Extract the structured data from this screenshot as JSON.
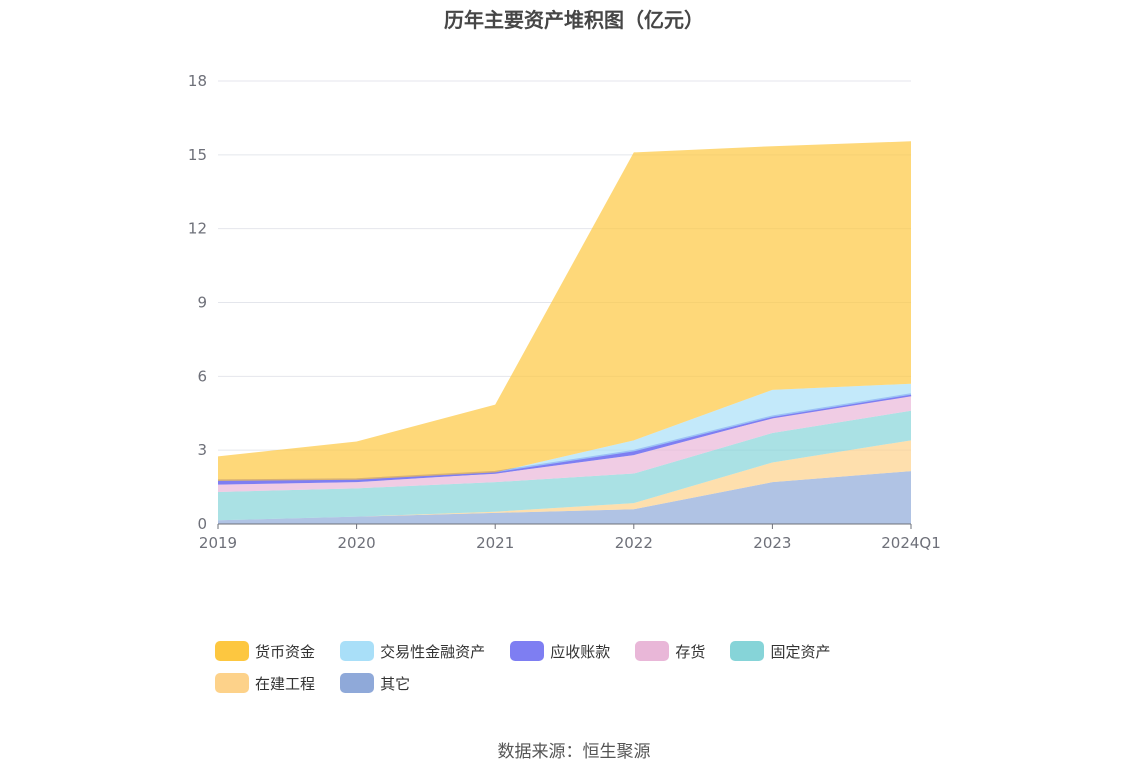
{
  "chart_data": {
    "type": "area",
    "title": "历年主要资产堆积图（亿元）",
    "categories": [
      "2019",
      "2020",
      "2021",
      "2022",
      "2023",
      "2024Q1"
    ],
    "ylim": [
      0,
      18
    ],
    "yticks": [
      0,
      3,
      6,
      9,
      12,
      15,
      18
    ],
    "grid": true,
    "legend_position": "bottom",
    "stacked": true,
    "series": [
      {
        "name": "其它",
        "color": "#8fa9d9",
        "values": [
          0.15,
          0.3,
          0.45,
          0.6,
          1.7,
          2.15
        ]
      },
      {
        "name": "在建工程",
        "color": "#fdd28a",
        "values": [
          0.0,
          0.0,
          0.05,
          0.25,
          0.8,
          1.25
        ]
      },
      {
        "name": "固定资产",
        "color": "#86d4d8",
        "values": [
          1.15,
          1.15,
          1.2,
          1.2,
          1.2,
          1.2
        ]
      },
      {
        "name": "存货",
        "color": "#e9b7d8",
        "values": [
          0.3,
          0.25,
          0.35,
          0.75,
          0.6,
          0.6
        ]
      },
      {
        "name": "应收账款",
        "color": "#7e7ef2",
        "values": [
          0.15,
          0.1,
          0.05,
          0.15,
          0.05,
          0.05
        ]
      },
      {
        "name": "交易性金融资产",
        "color": "#a9dff8",
        "values": [
          0.0,
          0.0,
          0.0,
          0.45,
          1.1,
          0.45
        ]
      },
      {
        "name": "货币资金",
        "color": "#fdc740",
        "values": [
          1.0,
          1.55,
          2.75,
          11.7,
          9.9,
          9.85
        ]
      }
    ]
  },
  "legend": [
    {
      "label": "货币资金",
      "color": "#fdc740"
    },
    {
      "label": "交易性金融资产",
      "color": "#a9dff8"
    },
    {
      "label": "应收账款",
      "color": "#7e7ef2"
    },
    {
      "label": "存货",
      "color": "#e9b7d8"
    },
    {
      "label": "固定资产",
      "color": "#86d4d8"
    },
    {
      "label": "在建工程",
      "color": "#fdd28a"
    },
    {
      "label": "其它",
      "color": "#8fa9d9"
    }
  ],
  "source": "数据来源：恒生聚源"
}
